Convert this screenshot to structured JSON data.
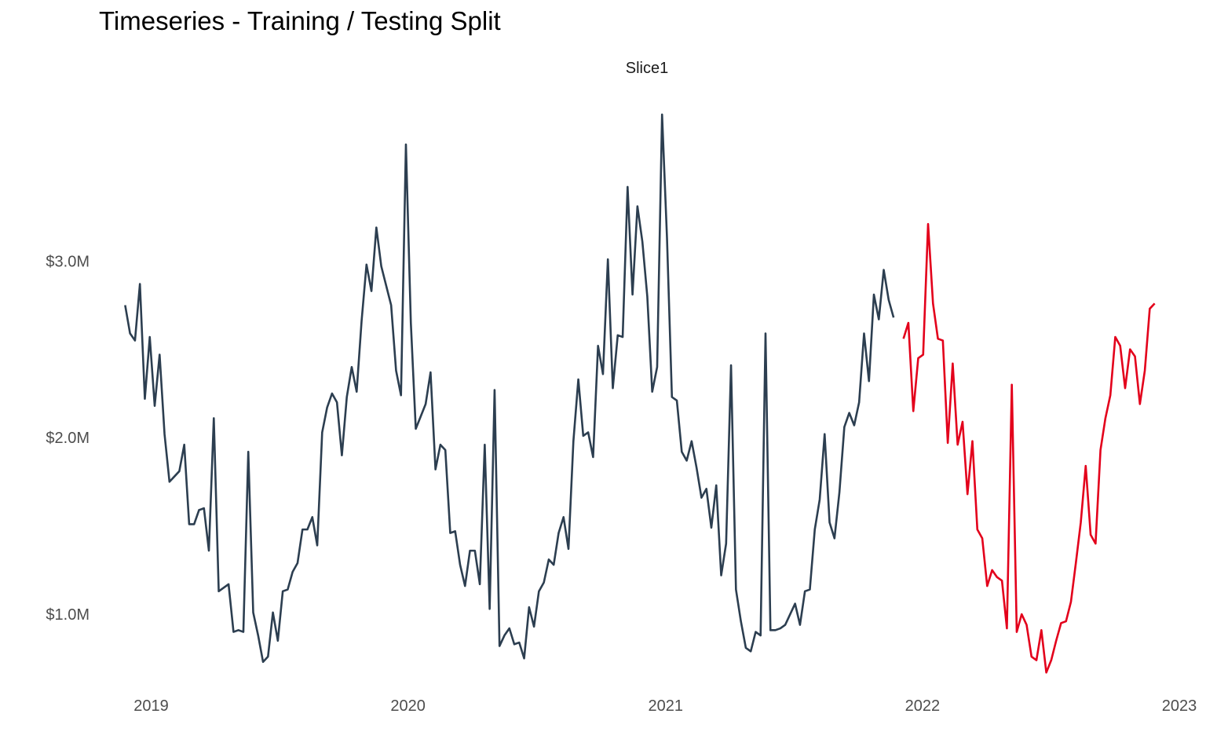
{
  "chart_data": {
    "type": "line",
    "title": "Timeseries - Training / Testing Split",
    "facet_label": "Slice1",
    "xlabel": "",
    "ylabel": "",
    "x_ticks": [
      "2019",
      "2020",
      "2021",
      "2022",
      "2023"
    ],
    "y_ticks": [
      {
        "value": 1000000,
        "label": "$1.0M"
      },
      {
        "value": 2000000,
        "label": "$2.0M"
      },
      {
        "value": 3000000,
        "label": "$3.0M"
      }
    ],
    "xlim": [
      "2018-10-21",
      "2023-01-01"
    ],
    "ylim": [
      600000,
      3900000
    ],
    "grid": false,
    "legend": "none",
    "series": [
      {
        "key": "training",
        "color": "#2c3e50",
        "start_date": "2018-11-25",
        "interval_days": 7,
        "values": [
          2750000,
          2590000,
          2550000,
          2870000,
          2220000,
          2570000,
          2180000,
          2470000,
          2020000,
          1750000,
          1780000,
          1810000,
          1960000,
          1510000,
          1510000,
          1590000,
          1600000,
          1360000,
          2110000,
          1130000,
          1150000,
          1170000,
          900000,
          910000,
          900000,
          1920000,
          1010000,
          880000,
          730000,
          760000,
          1010000,
          850000,
          1130000,
          1140000,
          1240000,
          1290000,
          1480000,
          1480000,
          1550000,
          1390000,
          2030000,
          2170000,
          2250000,
          2200000,
          1900000,
          2230000,
          2400000,
          2260000,
          2660000,
          2980000,
          2830000,
          3190000,
          2970000,
          2860000,
          2750000,
          2380000,
          2240000,
          3660000,
          2650000,
          2050000,
          2120000,
          2190000,
          2370000,
          1820000,
          1960000,
          1930000,
          1460000,
          1470000,
          1280000,
          1160000,
          1360000,
          1360000,
          1170000,
          1960000,
          1030000,
          2270000,
          820000,
          880000,
          920000,
          830000,
          840000,
          750000,
          1040000,
          930000,
          1130000,
          1180000,
          1310000,
          1280000,
          1460000,
          1550000,
          1370000,
          1980000,
          2330000,
          2010000,
          2030000,
          1890000,
          2520000,
          2360000,
          3010000,
          2280000,
          2580000,
          2570000,
          3420000,
          2810000,
          3310000,
          3110000,
          2800000,
          2260000,
          2400000,
          3830000,
          3130000,
          2230000,
          2210000,
          1920000,
          1870000,
          1980000,
          1830000,
          1660000,
          1710000,
          1490000,
          1730000,
          1220000,
          1400000,
          2410000,
          1140000,
          960000,
          810000,
          790000,
          900000,
          880000,
          2590000,
          910000,
          910000,
          920000,
          940000,
          1000000,
          1060000,
          940000,
          1130000,
          1140000,
          1480000,
          1650000,
          2020000,
          1520000,
          1430000,
          1690000,
          2060000,
          2140000,
          2070000,
          2200000,
          2590000,
          2320000,
          2810000,
          2670000,
          2950000,
          2780000,
          2680000
        ]
      },
      {
        "key": "testing",
        "color": "#e3001b",
        "start_date": "2021-12-05",
        "interval_days": 7,
        "values": [
          2560000,
          2650000,
          2150000,
          2450000,
          2470000,
          3210000,
          2760000,
          2560000,
          2550000,
          1970000,
          2420000,
          1960000,
          2090000,
          1680000,
          1980000,
          1480000,
          1430000,
          1160000,
          1250000,
          1210000,
          1190000,
          920000,
          2300000,
          900000,
          1000000,
          940000,
          760000,
          740000,
          910000,
          670000,
          740000,
          850000,
          950000,
          960000,
          1070000,
          1290000,
          1520000,
          1840000,
          1450000,
          1400000,
          1930000,
          2110000,
          2240000,
          2570000,
          2520000,
          2280000,
          2500000,
          2460000,
          2190000,
          2380000,
          2730000,
          2760000
        ]
      }
    ]
  }
}
